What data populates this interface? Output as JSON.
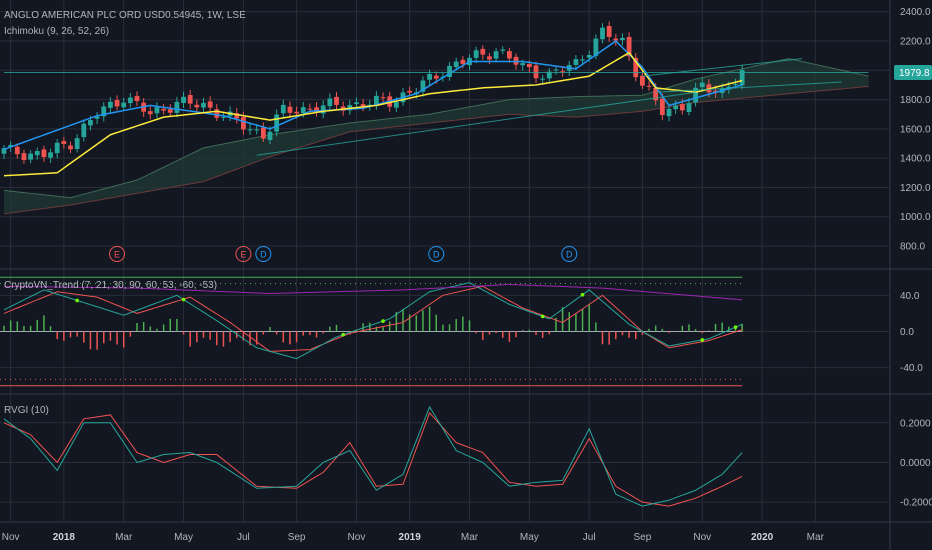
{
  "chart_data": [
    {
      "type": "candlestick",
      "title": "ANGLO AMERICAN PLC ORD USD0.54945, 1W, LSE",
      "indicator_label": "Ichimoku (9, 26, 52, 26)",
      "last_price": "1979.8",
      "ylim": [
        650,
        2480
      ],
      "y_ticks": [
        "800.0",
        "1000.0",
        "1200.0",
        "1400.0",
        "1600.0",
        "1800.0",
        "2000.0",
        "2200.0",
        "2400.0"
      ],
      "close_anchors": [
        [
          0,
          1450
        ],
        [
          6,
          1420
        ],
        [
          10,
          1510
        ],
        [
          14,
          1700
        ],
        [
          18,
          1820
        ],
        [
          22,
          1700
        ],
        [
          26,
          1780
        ],
        [
          30,
          1760
        ],
        [
          33,
          1700
        ],
        [
          36,
          1620
        ],
        [
          39,
          1560
        ],
        [
          42,
          1720
        ],
        [
          46,
          1740
        ],
        [
          50,
          1760
        ],
        [
          54,
          1770
        ],
        [
          58,
          1790
        ],
        [
          62,
          1870
        ],
        [
          66,
          2000
        ],
        [
          70,
          2080
        ],
        [
          74,
          2140
        ],
        [
          78,
          2020
        ],
        [
          82,
          1960
        ],
        [
          86,
          2050
        ],
        [
          90,
          2250
        ],
        [
          93,
          2200
        ],
        [
          96,
          1900
        ],
        [
          99,
          1720
        ],
        [
          102,
          1760
        ],
        [
          105,
          1880
        ],
        [
          108,
          1860
        ],
        [
          111,
          1979.8
        ]
      ],
      "tenkan_anchors": [
        [
          0,
          1460
        ],
        [
          14,
          1690
        ],
        [
          22,
          1760
        ],
        [
          33,
          1690
        ],
        [
          40,
          1600
        ],
        [
          46,
          1720
        ],
        [
          54,
          1740
        ],
        [
          62,
          1840
        ],
        [
          70,
          2060
        ],
        [
          78,
          2060
        ],
        [
          86,
          2010
        ],
        [
          92,
          2200
        ],
        [
          96,
          2020
        ],
        [
          100,
          1760
        ],
        [
          111,
          1900
        ]
      ],
      "kijun_anchors": [
        [
          0,
          1280
        ],
        [
          8,
          1300
        ],
        [
          16,
          1560
        ],
        [
          24,
          1680
        ],
        [
          32,
          1720
        ],
        [
          40,
          1660
        ],
        [
          48,
          1720
        ],
        [
          56,
          1760
        ],
        [
          64,
          1840
        ],
        [
          72,
          1880
        ],
        [
          80,
          1900
        ],
        [
          88,
          1960
        ],
        [
          94,
          2120
        ],
        [
          98,
          1880
        ],
        [
          104,
          1850
        ],
        [
          111,
          1930
        ]
      ],
      "cloud_a_anchors": [
        [
          0,
          1180
        ],
        [
          10,
          1130
        ],
        [
          20,
          1250
        ],
        [
          30,
          1470
        ],
        [
          40,
          1560
        ],
        [
          52,
          1640
        ],
        [
          64,
          1700
        ],
        [
          76,
          1800
        ],
        [
          86,
          1820
        ],
        [
          96,
          1830
        ],
        [
          104,
          1940
        ],
        [
          118,
          2080
        ],
        [
          130,
          1960
        ]
      ],
      "cloud_b_anchors": [
        [
          0,
          1020
        ],
        [
          10,
          1080
        ],
        [
          20,
          1160
        ],
        [
          30,
          1240
        ],
        [
          40,
          1410
        ],
        [
          52,
          1580
        ],
        [
          64,
          1640
        ],
        [
          76,
          1700
        ],
        [
          86,
          1680
        ],
        [
          96,
          1720
        ],
        [
          104,
          1780
        ],
        [
          118,
          1840
        ],
        [
          130,
          1890
        ]
      ],
      "trendlines": [
        {
          "from": [
            38,
            1420
          ],
          "to": [
            104,
            1850
          ],
          "color": "#26a69a"
        },
        {
          "from": [
            96,
            1960
          ],
          "to": [
            120,
            2080
          ],
          "color": "#26a69a"
        },
        {
          "from": [
            98,
            1850
          ],
          "to": [
            126,
            1920
          ],
          "color": "#26a69a"
        },
        {
          "from": [
            0,
            1985
          ],
          "to": [
            130,
            1985
          ],
          "color": "#26a69a"
        }
      ],
      "events": [
        {
          "label": "E",
          "week": 17,
          "color": "#ef5350"
        },
        {
          "label": "E",
          "week": 36,
          "color": "#ef5350"
        },
        {
          "label": "D",
          "week": 39,
          "color": "#2196f3"
        },
        {
          "label": "D",
          "week": 65,
          "color": "#2196f3"
        },
        {
          "label": "D",
          "week": 85,
          "color": "#2196f3"
        }
      ]
    },
    {
      "type": "line",
      "title": "CryptoVN_Trend (7, 21, 30, 90, 60, 53, -60, -53)",
      "ylim": [
        -68,
        68
      ],
      "y_ticks": [
        "40.0",
        "0.0",
        "-40.0"
      ],
      "levels": [
        60,
        53,
        -53,
        -60
      ],
      "series": [
        {
          "color": "#ef5350",
          "anchors": [
            [
              0,
              20
            ],
            [
              8,
              44
            ],
            [
              14,
              38
            ],
            [
              20,
              20
            ],
            [
              28,
              38
            ],
            [
              34,
              10
            ],
            [
              40,
              -22
            ],
            [
              46,
              -20
            ],
            [
              52,
              -2
            ],
            [
              60,
              10
            ],
            [
              66,
              40
            ],
            [
              72,
              50
            ],
            [
              78,
              26
            ],
            [
              84,
              10
            ],
            [
              90,
              40
            ],
            [
              96,
              0
            ],
            [
              100,
              -18
            ],
            [
              106,
              -10
            ],
            [
              111,
              2
            ]
          ]
        },
        {
          "color": "#26a69a",
          "anchors": [
            [
              0,
              24
            ],
            [
              6,
              46
            ],
            [
              12,
              32
            ],
            [
              18,
              18
            ],
            [
              26,
              40
            ],
            [
              32,
              12
            ],
            [
              38,
              -18
            ],
            [
              44,
              -30
            ],
            [
              50,
              -6
            ],
            [
              58,
              14
            ],
            [
              64,
              44
            ],
            [
              70,
              54
            ],
            [
              76,
              30
            ],
            [
              82,
              14
            ],
            [
              88,
              46
            ],
            [
              94,
              8
            ],
            [
              100,
              -16
            ],
            [
              106,
              -8
            ],
            [
              111,
              8
            ]
          ]
        },
        {
          "color": "#9c27b0",
          "anchors": [
            [
              0,
              50
            ],
            [
              20,
              48
            ],
            [
              40,
              42
            ],
            [
              60,
              46
            ],
            [
              76,
              52
            ],
            [
              90,
              48
            ],
            [
              111,
              35
            ]
          ]
        }
      ]
    },
    {
      "type": "line",
      "title": "RVGI (10)",
      "ylim": [
        -0.3,
        0.34
      ],
      "y_ticks": [
        "0.2000",
        "0.0000",
        "-0.2000"
      ],
      "series": [
        {
          "color": "#ef5350",
          "anchors": [
            [
              0,
              0.2
            ],
            [
              4,
              0.14
            ],
            [
              8,
              0.0
            ],
            [
              12,
              0.22
            ],
            [
              16,
              0.24
            ],
            [
              20,
              0.05
            ],
            [
              24,
              0.0
            ],
            [
              28,
              0.04
            ],
            [
              32,
              0.04
            ],
            [
              38,
              -0.12
            ],
            [
              44,
              -0.13
            ],
            [
              48,
              -0.05
            ],
            [
              52,
              0.1
            ],
            [
              56,
              -0.12
            ],
            [
              60,
              -0.11
            ],
            [
              64,
              0.25
            ],
            [
              68,
              0.1
            ],
            [
              72,
              0.05
            ],
            [
              76,
              -0.1
            ],
            [
              80,
              -0.12
            ],
            [
              84,
              -0.11
            ],
            [
              88,
              0.12
            ],
            [
              92,
              -0.12
            ],
            [
              96,
              -0.2
            ],
            [
              100,
              -0.22
            ],
            [
              104,
              -0.18
            ],
            [
              108,
              -0.12
            ],
            [
              111,
              -0.07
            ]
          ]
        },
        {
          "color": "#26a69a",
          "anchors": [
            [
              0,
              0.22
            ],
            [
              4,
              0.12
            ],
            [
              8,
              -0.04
            ],
            [
              12,
              0.2
            ],
            [
              16,
              0.2
            ],
            [
              20,
              0.0
            ],
            [
              24,
              0.04
            ],
            [
              28,
              0.05
            ],
            [
              32,
              0.0
            ],
            [
              38,
              -0.13
            ],
            [
              44,
              -0.12
            ],
            [
              48,
              0.0
            ],
            [
              52,
              0.06
            ],
            [
              56,
              -0.14
            ],
            [
              60,
              -0.06
            ],
            [
              64,
              0.28
            ],
            [
              68,
              0.06
            ],
            [
              72,
              0.0
            ],
            [
              76,
              -0.12
            ],
            [
              80,
              -0.1
            ],
            [
              84,
              -0.09
            ],
            [
              88,
              0.17
            ],
            [
              92,
              -0.16
            ],
            [
              96,
              -0.22
            ],
            [
              100,
              -0.19
            ],
            [
              104,
              -0.14
            ],
            [
              108,
              -0.06
            ],
            [
              111,
              0.05
            ]
          ]
        }
      ]
    }
  ],
  "x_axis": {
    "labels": [
      {
        "text": "Nov",
        "week": 1,
        "bold": false
      },
      {
        "text": "2018",
        "week": 9,
        "bold": true
      },
      {
        "text": "Mar",
        "week": 18,
        "bold": false
      },
      {
        "text": "May",
        "week": 27,
        "bold": false
      },
      {
        "text": "Jul",
        "week": 36,
        "bold": false
      },
      {
        "text": "Sep",
        "week": 44,
        "bold": false
      },
      {
        "text": "Nov",
        "week": 53,
        "bold": false
      },
      {
        "text": "2019",
        "week": 61,
        "bold": true
      },
      {
        "text": "Mar",
        "week": 70,
        "bold": false
      },
      {
        "text": "May",
        "week": 79,
        "bold": false
      },
      {
        "text": "Jul",
        "week": 88,
        "bold": false
      },
      {
        "text": "Sep",
        "week": 96,
        "bold": false
      },
      {
        "text": "Nov",
        "week": 105,
        "bold": false
      },
      {
        "text": "2020",
        "week": 114,
        "bold": true
      },
      {
        "text": "Mar",
        "week": 122,
        "bold": false
      }
    ]
  },
  "colors": {
    "background": "#131722",
    "grid": "#2a2e39",
    "up": "#26a69a",
    "down": "#ef5350",
    "tenkan": "#2196f3",
    "kijun": "#ffeb3b"
  }
}
